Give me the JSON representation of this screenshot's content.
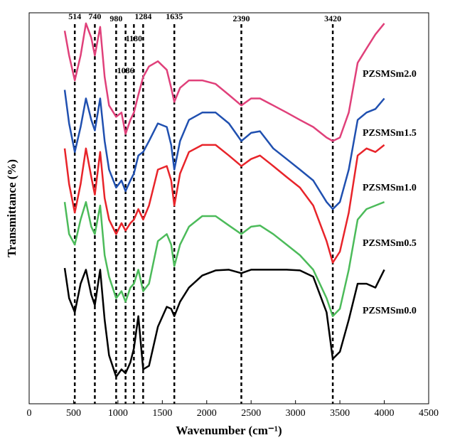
{
  "chart_data": {
    "type": "line",
    "y_label": "Transmittance (%)",
    "x_label": "Wavenumber (cm⁻¹)",
    "xlim": [
      0,
      4500
    ],
    "xticks": [
      0,
      500,
      1000,
      1500,
      2000,
      2500,
      3000,
      3500,
      4000,
      4500
    ],
    "ylim": [
      0,
      100
    ],
    "grid": false,
    "peak_lines": [
      514,
      740,
      980,
      1180,
      1086,
      1284,
      1635,
      2390,
      3420
    ],
    "x": [
      400,
      450,
      514,
      580,
      640,
      700,
      740,
      800,
      850,
      900,
      980,
      1040,
      1086,
      1140,
      1180,
      1230,
      1284,
      1350,
      1450,
      1550,
      1600,
      1635,
      1700,
      1800,
      1950,
      2100,
      2250,
      2390,
      2500,
      2600,
      2750,
      2900,
      3050,
      3200,
      3350,
      3420,
      3500,
      3600,
      3700,
      3800,
      3900,
      4000
    ],
    "series": [
      {
        "name": "PZSMSm2.0",
        "color": "#e0407a",
        "values": [
          95.4,
          89.1,
          82.7,
          89.1,
          97.3,
          93.6,
          89.1,
          96.4,
          83.6,
          76.3,
          73.4,
          74.5,
          69,
          72.6,
          74.5,
          79,
          83.6,
          86.3,
          87.6,
          85.4,
          80.8,
          77.2,
          80.8,
          82.7,
          82.7,
          81.8,
          79,
          76.3,
          78.1,
          78.1,
          76.3,
          74.5,
          72.6,
          70.8,
          68.1,
          67.2,
          68.1,
          74.5,
          87.2,
          90.9,
          94.5,
          97.3
        ]
      },
      {
        "name": "PZSMSm1.5",
        "color": "#2050b0",
        "values": [
          80.3,
          71.7,
          64.4,
          70.8,
          78.1,
          72.6,
          69.9,
          78.1,
          67.2,
          59.9,
          55.3,
          57.1,
          54.4,
          57.1,
          58.9,
          63.5,
          64.4,
          67.2,
          71.7,
          70.8,
          66.2,
          59.9,
          67.2,
          72.6,
          74.5,
          74.5,
          71.7,
          67.2,
          69.3,
          69.7,
          65.3,
          62.6,
          59.9,
          57.1,
          51.6,
          49.8,
          51.6,
          59.9,
          72.6,
          74.5,
          75.4,
          78.1
        ]
      },
      {
        "name": "PZSMSm1.0",
        "color": "#e8242a",
        "values": [
          65.3,
          56.2,
          48.9,
          56.2,
          65.3,
          58,
          53.5,
          64.4,
          52.6,
          47.1,
          43.4,
          46.2,
          44.3,
          46.2,
          47.1,
          49.8,
          47.1,
          50.7,
          59.9,
          60.8,
          57.1,
          50.7,
          58.9,
          64.4,
          66.2,
          66.2,
          63.5,
          60.8,
          62.6,
          63.5,
          60.8,
          58,
          55.3,
          50.7,
          41.6,
          36.1,
          38.9,
          48.9,
          63.5,
          65.3,
          64.4,
          66.2
        ]
      },
      {
        "name": "PZSMSm0.5",
        "color": "#4cbb5a",
        "values": [
          51.6,
          43.4,
          40.7,
          47.1,
          51.6,
          45.3,
          43.4,
          50.7,
          38,
          32.5,
          27,
          28.8,
          26.1,
          29.7,
          30.7,
          34.3,
          28.8,
          30.7,
          41.6,
          43.4,
          40.7,
          35.2,
          40.7,
          45.3,
          48,
          48,
          45.6,
          43.4,
          45.3,
          45.6,
          43.4,
          40.7,
          38,
          34.3,
          27,
          22.4,
          24.3,
          34.3,
          47.1,
          49.8,
          50.7,
          51.6
        ]
      },
      {
        "name": "PZSMSm0.0",
        "color": "#000000",
        "values": [
          34.7,
          27,
          23.4,
          30.7,
          34.3,
          27.9,
          25.2,
          34.3,
          21.5,
          12.4,
          6.9,
          8.8,
          7.8,
          10.6,
          14.2,
          22.4,
          8.8,
          9.7,
          19.7,
          24.8,
          24.3,
          22.4,
          26.1,
          29.7,
          32.8,
          34.1,
          34.3,
          33.4,
          34.3,
          34.3,
          34.3,
          34.3,
          34.1,
          32.5,
          23.4,
          11.5,
          13.3,
          21.5,
          30.7,
          30.7,
          29.7,
          34.3
        ]
      }
    ]
  }
}
